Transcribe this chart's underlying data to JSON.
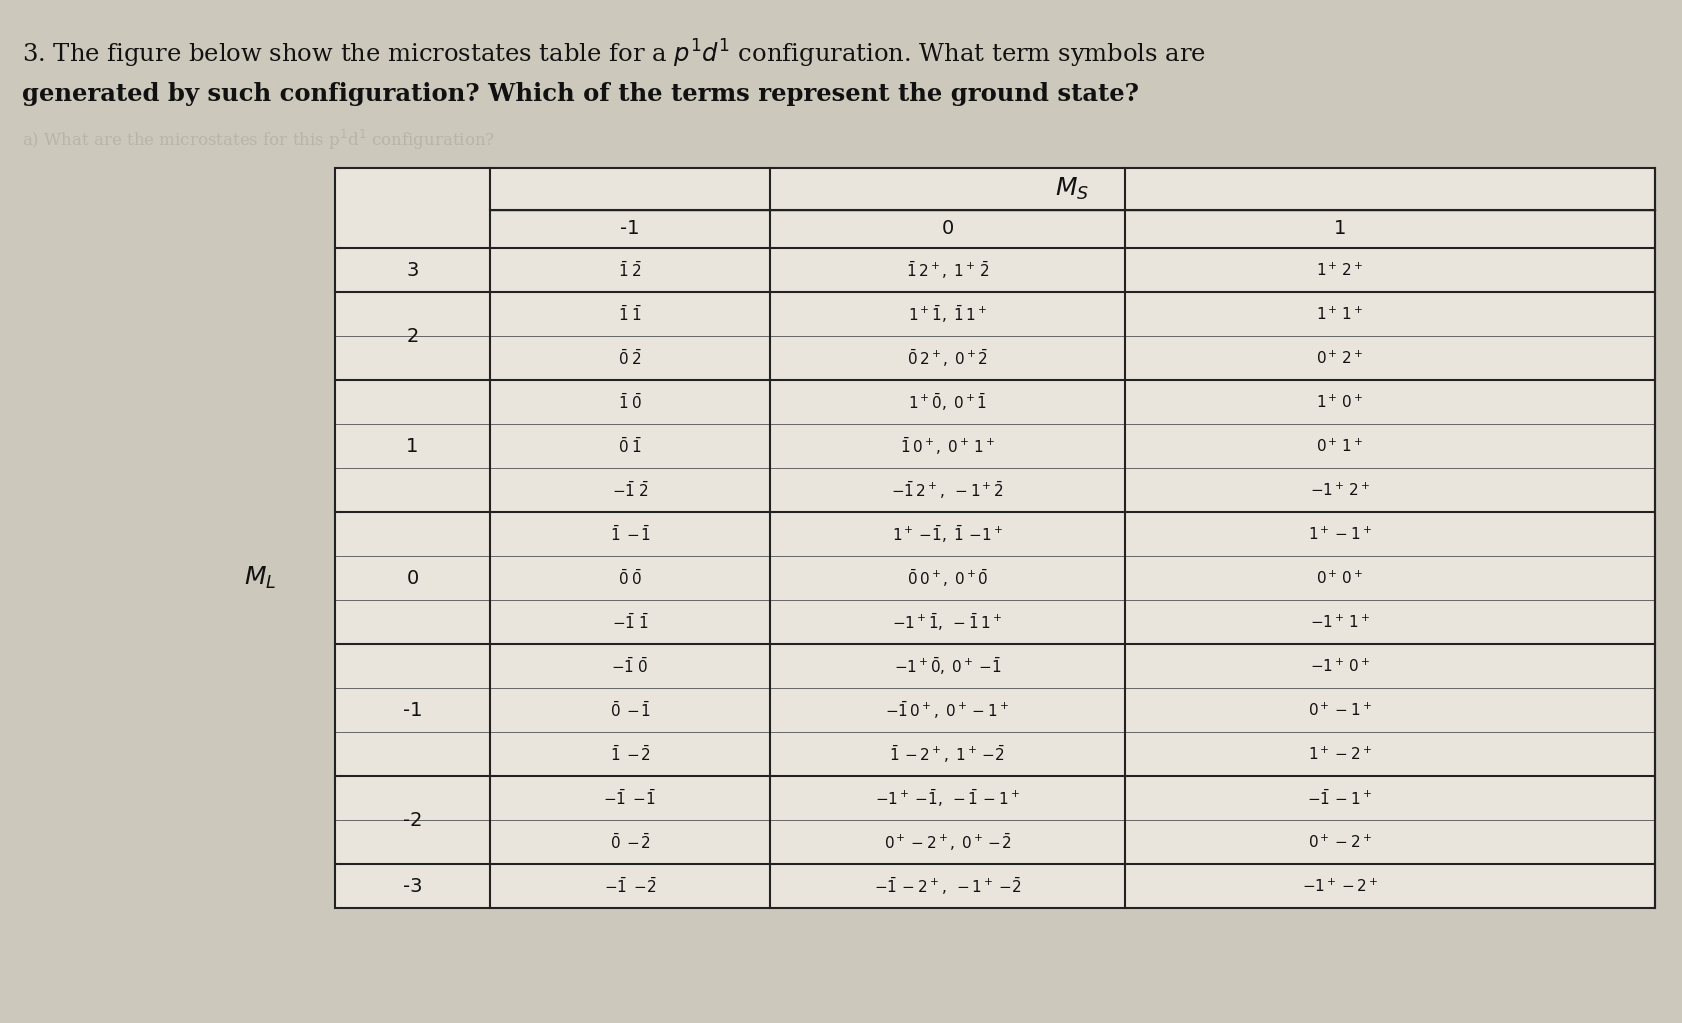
{
  "bg_color": "#ccc8bc",
  "table_bg": "#e8e4dc",
  "fig_width": 16.83,
  "fig_height": 10.23,
  "title1": "3. The figure below show the microstates table for a ",
  "title1_math": "p^{1}d^{1}",
  "title1_end": " configuration. What term symbols are",
  "title2": "generated by such configuration? Which of the terms represent the ground state?",
  "subtitle": "a) What are the microstates for this p",
  "ml_label": "$M_L$",
  "ms_label": "$M_S$",
  "col_headers": [
    "-1",
    "0",
    "1"
  ],
  "row_labels": [
    "3",
    "2",
    "1",
    "0",
    "-1",
    "-2",
    "-3"
  ],
  "row_nlines": [
    1,
    2,
    3,
    3,
    3,
    2,
    1
  ],
  "cells_ms_neg1": [
    [
      "$\\bar{1}\\;\\bar{2}$"
    ],
    [
      "$\\bar{1}\\;\\bar{1}$",
      "$\\bar{0}\\;\\bar{2}$"
    ],
    [
      "$\\bar{1}\\;\\bar{0}$",
      "$\\bar{0}\\;\\bar{1}$",
      "$-\\bar{1}\\;\\bar{2}$"
    ],
    [
      "$\\bar{1}\\;-\\!\\bar{1}$",
      "$\\bar{0}\\;\\bar{0}$",
      "$-\\bar{1}\\;\\bar{1}$"
    ],
    [
      "$-\\bar{1}\\;\\bar{0}$",
      "$\\bar{0}\\;-\\!\\bar{1}$",
      "$\\bar{1}\\;-\\!\\bar{2}$"
    ],
    [
      "$-\\bar{1}\\;-\\!\\bar{1}$",
      "$\\bar{0}\\;-\\!\\bar{2}$"
    ],
    [
      "$-\\bar{1}\\;-\\!\\bar{2}$"
    ]
  ],
  "cells_ms_0": [
    [
      "$\\bar{1}\\,2^+,\\;1^+\\,\\bar{2}$"
    ],
    [
      "$1^+\\bar{1},\\;\\bar{1}\\,1^+$",
      "$\\bar{0}\\,2^+,\\;0^+\\bar{2}$"
    ],
    [
      "$1^+\\bar{0},\\;0^+\\bar{1}$",
      "$\\bar{1}\\,0^+,\\;0^+\\,1^+$",
      "$-\\bar{1}\\,2^+,\\;-1^+\\bar{2}$"
    ],
    [
      "$1^+-\\!\\bar{1},\\;\\bar{1}\\,-\\!1^+$",
      "$\\bar{0}\\,0^+,\\;0^+\\bar{0}$",
      "$-1^+\\bar{1},\\;-\\bar{1}\\,1^+$"
    ],
    [
      "$-1^+\\bar{0},\\;0^+-\\!\\bar{1}$",
      "$-\\bar{1}\\,0^+,\\;0^+-1^+$",
      "$\\bar{1}\\,-2^+,\\;1^+-\\!\\bar{2}$"
    ],
    [
      "$-1^+-\\!\\bar{1},\\;-\\bar{1}\\,-1^+$",
      "$0^+-2^+,\\;0^+-\\!\\bar{2}$"
    ],
    [
      "$-\\bar{1}\\,-2^+,\\;-1^+-\\!\\bar{2}$"
    ]
  ],
  "cells_ms_pos1": [
    [
      "$1^+\\,2^+$"
    ],
    [
      "$1^+\\,1^+$",
      "$0^+\\,2^+$"
    ],
    [
      "$1^+\\,0^+$",
      "$0^+\\,1^+$",
      "$-1^+\\,2^+$"
    ],
    [
      "$1^+-1^+$",
      "$0^+\\,0^+$",
      "$-1^+\\,1^+$"
    ],
    [
      "$-1^+\\,0^+$",
      "$0^+-1^+$",
      "$1^+-2^+$"
    ],
    [
      "$-\\bar{1}\\,-1^+$",
      "$0^+-2^+$"
    ],
    [
      "$-1^+-2^+$"
    ]
  ]
}
